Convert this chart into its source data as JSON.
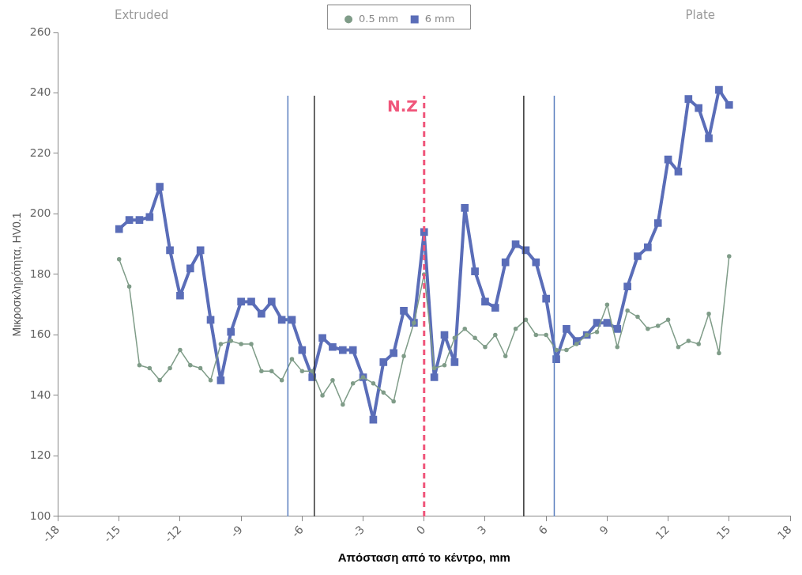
{
  "chart_data": {
    "type": "line",
    "xlabel": "Απόσταση από το κέντρο, mm",
    "ylabel": "Μικροσκληρότητα, HV0.1",
    "x": [
      -15,
      -14.5,
      -14,
      -13.5,
      -13,
      -12.5,
      -12,
      -11.5,
      -11,
      -10.5,
      -10,
      -9.5,
      -9,
      -8.5,
      -8,
      -7.5,
      -7,
      -6.5,
      -6,
      -5.5,
      -5,
      -4.5,
      -4,
      -3.5,
      -3,
      -2.5,
      -2,
      -1.5,
      -1,
      -0.5,
      0,
      0.5,
      1,
      1.5,
      2,
      2.5,
      3,
      3.5,
      4,
      4.5,
      5,
      5.5,
      6,
      6.5,
      7,
      7.5,
      8,
      8.5,
      9,
      9.5,
      10,
      10.5,
      11,
      11.5,
      12,
      12.5,
      13,
      13.5,
      14,
      14.5,
      15
    ],
    "series": [
      {
        "name": "0.5 mm",
        "color": "#7f9c88",
        "marker": "circle",
        "values": [
          185,
          176,
          150,
          149,
          145,
          149,
          155,
          150,
          149,
          145,
          157,
          158,
          157,
          157,
          148,
          148,
          145,
          152,
          148,
          148,
          140,
          145,
          137,
          144,
          146,
          144,
          141,
          138,
          153,
          164,
          180,
          149,
          150,
          159,
          162,
          159,
          156,
          160,
          153,
          162,
          165,
          160,
          160,
          155,
          155,
          157,
          160,
          161,
          170,
          156,
          168,
          166,
          162,
          163,
          165,
          156,
          158,
          157,
          167,
          154,
          186
        ]
      },
      {
        "name": "6 mm",
        "color": "#5a6db8",
        "marker": "square",
        "values": [
          195,
          198,
          198,
          199,
          209,
          188,
          173,
          182,
          188,
          165,
          145,
          161,
          171,
          171,
          167,
          171,
          165,
          165,
          155,
          146,
          159,
          156,
          155,
          155,
          146,
          132,
          151,
          154,
          168,
          164,
          194,
          146,
          160,
          151,
          202,
          181,
          171,
          169,
          184,
          190,
          188,
          184,
          172,
          152,
          162,
          158,
          160,
          164,
          164,
          162,
          176,
          186,
          189,
          197,
          218,
          214,
          238,
          235,
          225,
          241,
          236
        ]
      }
    ],
    "xlim": [
      -18,
      18
    ],
    "xticks": [
      -18,
      -15,
      -12,
      -9,
      -6,
      -3,
      0,
      3,
      6,
      9,
      12,
      15,
      18
    ],
    "ylim": [
      100,
      260
    ],
    "yticks": [
      100,
      120,
      140,
      160,
      180,
      200,
      220,
      240,
      260
    ],
    "ref_lines": [
      {
        "axis": "x",
        "value": -6.7,
        "color": "#5b7fbf"
      },
      {
        "axis": "x",
        "value": -5.4,
        "color": "#333333"
      },
      {
        "axis": "x",
        "value": 0,
        "label": "N.Z",
        "color": "#f0557a",
        "line_style": "dashed"
      },
      {
        "axis": "x",
        "value": 4.9,
        "color": "#333333"
      },
      {
        "axis": "x",
        "value": 6.4,
        "color": "#5b7fbf"
      }
    ],
    "annotations": [
      "Extruded",
      "Plate"
    ],
    "legend": "top",
    "grid": false
  }
}
